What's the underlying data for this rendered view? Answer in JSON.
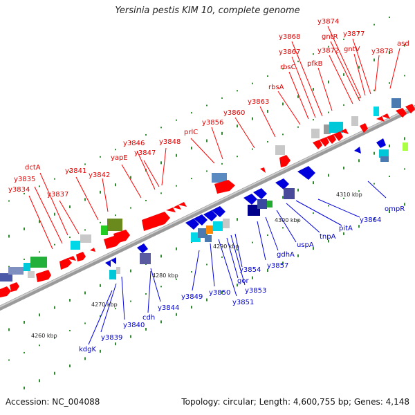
{
  "header": {
    "title": "Yersinia pestis KIM 10, complete genome"
  },
  "footer": {
    "accession": "Accession: NC_004088",
    "summary": "Topology: circular; Length: 4,600,755 bp; Genes: 4,148"
  },
  "scale": {
    "ticks": [
      {
        "label": "4260 kbp"
      },
      {
        "label": "4270 kbp"
      },
      {
        "label": "4280 kbp"
      },
      {
        "label": "4290 kbp"
      },
      {
        "label": "4300 kbp"
      },
      {
        "label": "4310 kbp"
      }
    ]
  },
  "colors": {
    "forward": "#ff0000",
    "reverse": "#0000dd",
    "backbone": "#888888"
  },
  "forward_genes": [
    {
      "name": "y3834"
    },
    {
      "name": "y3835"
    },
    {
      "name": "dctA"
    },
    {
      "name": "y3837"
    },
    {
      "name": "y3841"
    },
    {
      "name": "y3842"
    },
    {
      "name": "yapE"
    },
    {
      "name": "y3846"
    },
    {
      "name": "y3847"
    },
    {
      "name": "y3848"
    },
    {
      "name": "prlC"
    },
    {
      "name": "y3856"
    },
    {
      "name": "y3860"
    },
    {
      "name": "y3863"
    },
    {
      "name": "rbsA"
    },
    {
      "name": "rbsC"
    },
    {
      "name": "y3867"
    },
    {
      "name": "y3868"
    },
    {
      "name": "pfkB"
    },
    {
      "name": "y3872"
    },
    {
      "name": "gntR"
    },
    {
      "name": "y3874"
    },
    {
      "name": "gntV"
    },
    {
      "name": "y3877"
    },
    {
      "name": "y3878"
    },
    {
      "name": "asd"
    }
  ],
  "reverse_genes": [
    {
      "name": "kdgK"
    },
    {
      "name": "y3839"
    },
    {
      "name": "y3840"
    },
    {
      "name": "cdh"
    },
    {
      "name": "y3844"
    },
    {
      "name": "y3849"
    },
    {
      "name": "y3850"
    },
    {
      "name": "y3851"
    },
    {
      "name": "gor"
    },
    {
      "name": "y3853"
    },
    {
      "name": "y3854"
    },
    {
      "name": "y3857"
    },
    {
      "name": "gdhA"
    },
    {
      "name": "uspA"
    },
    {
      "name": "tnpA"
    },
    {
      "name": "pitA"
    },
    {
      "name": "y3864"
    },
    {
      "name": "ompR"
    }
  ]
}
